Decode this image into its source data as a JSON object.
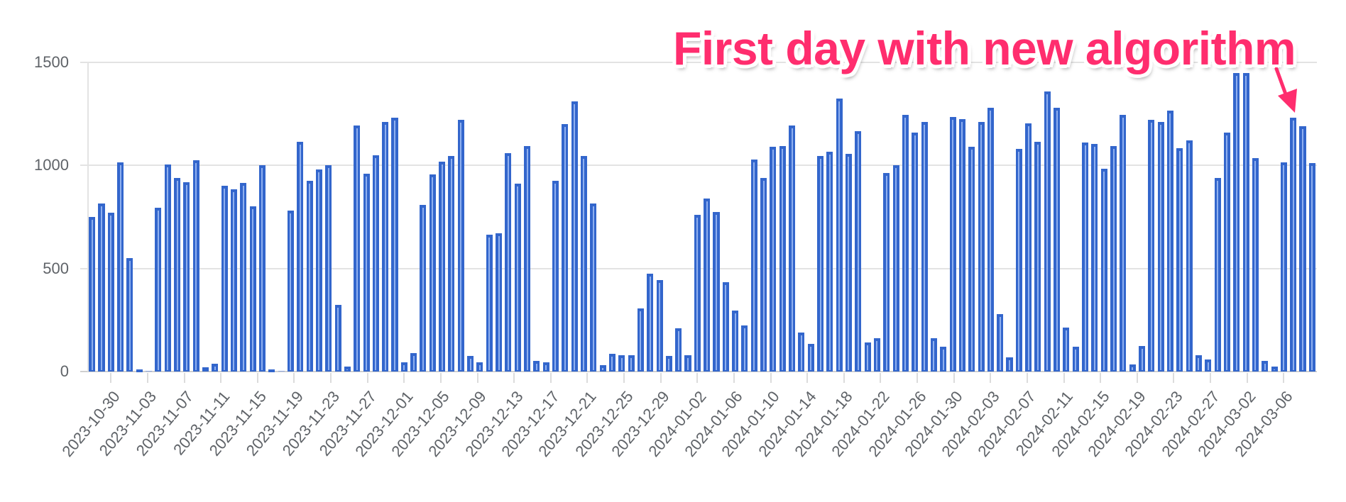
{
  "chart_data": {
    "type": "bar",
    "title": "",
    "xlabel": "",
    "ylabel": "",
    "ylim": [
      0,
      1500
    ],
    "yticks": [
      0,
      500,
      1000,
      1500
    ],
    "grid": true,
    "legend": "none",
    "bar_color": "#3366cc",
    "x_tick_labels": [
      "2023-10-30",
      "2023-11-03",
      "2023-11-07",
      "2023-11-11",
      "2023-11-15",
      "2023-11-19",
      "2023-11-23",
      "2023-11-27",
      "2023-12-01",
      "2023-12-05",
      "2023-12-09",
      "2023-12-13",
      "2023-12-17",
      "2023-12-21",
      "2023-12-25",
      "2023-12-29",
      "2024-01-02",
      "2024-01-06",
      "2024-01-10",
      "2024-01-14",
      "2024-01-18",
      "2024-01-22",
      "2024-01-26",
      "2024-01-30",
      "2024-02-03",
      "2024-02-07",
      "2024-02-11",
      "2024-02-15",
      "2024-02-19",
      "2024-02-23",
      "2024-02-27",
      "2024-03-02",
      "2024-03-06"
    ],
    "values": [
      750,
      817,
      770,
      1015,
      550,
      10,
      0,
      795,
      1005,
      940,
      920,
      1025,
      20,
      38,
      900,
      885,
      915,
      800,
      1000,
      10,
      0,
      780,
      1115,
      925,
      980,
      1000,
      325,
      25,
      1195,
      960,
      1050,
      1210,
      1230,
      45,
      90,
      810,
      955,
      1020,
      1045,
      1220,
      75,
      45,
      665,
      670,
      1060,
      910,
      1095,
      50,
      45,
      925,
      1200,
      1310,
      1045,
      815,
      30,
      85,
      80,
      80,
      305,
      475,
      445,
      75,
      210,
      80,
      760,
      840,
      775,
      435,
      295,
      225,
      1030,
      940,
      1090,
      1095,
      1195,
      190,
      135,
      1045,
      1065,
      1325,
      1055,
      1165,
      140,
      160,
      965,
      1000,
      1245,
      1160,
      1210,
      160,
      120,
      1235,
      1225,
      1090,
      1210,
      1280,
      280,
      70,
      1080,
      1205,
      1115,
      1360,
      1280,
      215,
      120,
      1110,
      1105,
      985,
      1095,
      1245,
      35,
      125,
      1220,
      1210,
      1265,
      1085,
      1120,
      80,
      60,
      940,
      1160,
      1450,
      1450,
      1035,
      50,
      25,
      1015,
      1230,
      1190,
      1010
    ],
    "annotation": {
      "text": "First day with new algorithm",
      "color": "#ff2d6e",
      "points_to_bar_index": 127
    }
  },
  "annotation_text": "First day with new algorithm",
  "y_axis_labels": [
    "1500",
    "1000",
    "500",
    "0"
  ]
}
